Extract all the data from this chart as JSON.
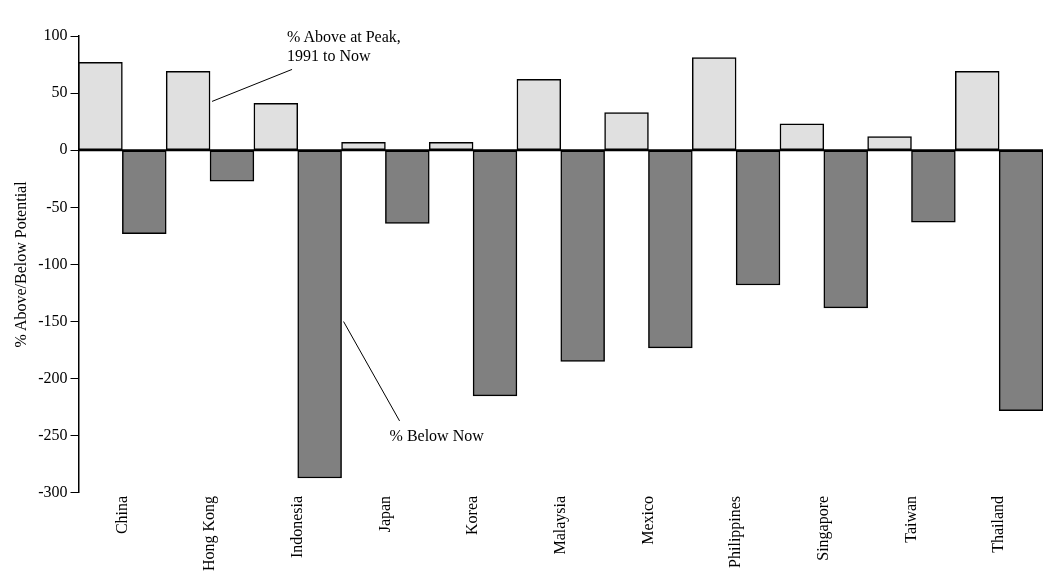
{
  "chart_data": {
    "type": "bar",
    "ylabel": "% Above/Below Potential",
    "categories": [
      "China",
      "Hong Kong",
      "Indonesia",
      "Japan",
      "Korea",
      "Malaysia",
      "Mexico",
      "Philippines",
      "Singapore",
      "Taiwan",
      "Thailand"
    ],
    "series": [
      {
        "name": "% Above at Peak, 1991 to Now",
        "color": "#e0e0e0",
        "values": [
          77,
          69,
          41,
          7,
          7,
          62,
          33,
          81,
          23,
          12,
          69
        ]
      },
      {
        "name": "% Below Now",
        "color": "#808080",
        "values": [
          -73,
          -27,
          -287,
          -64,
          -215,
          -185,
          -173,
          -118,
          -138,
          -63,
          -228
        ]
      }
    ],
    "ref_lines": [
      {
        "axis": "y",
        "value": 0
      }
    ],
    "ylim": [
      -300,
      100
    ],
    "yticks": [
      -300,
      -250,
      -200,
      -150,
      -100,
      -50,
      0,
      50,
      100
    ],
    "grid": false,
    "legend": false
  }
}
